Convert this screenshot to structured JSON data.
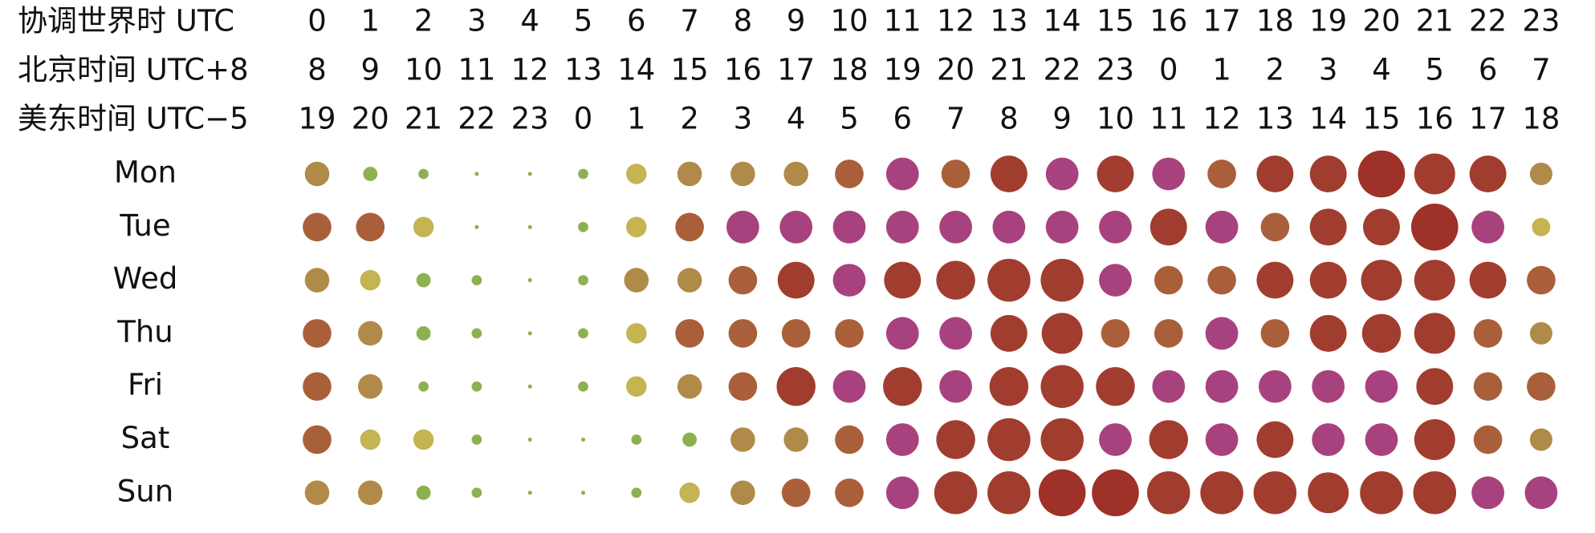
{
  "chart_data": {
    "type": "punchcard",
    "time_rows": [
      {
        "label": "协调世界时 UTC",
        "hours": [
          0,
          1,
          2,
          3,
          4,
          5,
          6,
          7,
          8,
          9,
          10,
          11,
          12,
          13,
          14,
          15,
          16,
          17,
          18,
          19,
          20,
          21,
          22,
          23
        ]
      },
      {
        "label": "北京时间 UTC+8",
        "hours": [
          8,
          9,
          10,
          11,
          12,
          13,
          14,
          15,
          16,
          17,
          18,
          19,
          20,
          21,
          22,
          23,
          0,
          1,
          2,
          3,
          4,
          5,
          6,
          7
        ]
      },
      {
        "label": "美东时间 UTC−5",
        "hours": [
          19,
          20,
          21,
          22,
          23,
          0,
          1,
          2,
          3,
          4,
          5,
          6,
          7,
          8,
          9,
          10,
          11,
          12,
          13,
          14,
          15,
          16,
          17,
          18
        ]
      }
    ],
    "series": [
      {
        "name": "Mon",
        "values": [
          12,
          7,
          5,
          2,
          2,
          5,
          10,
          12,
          12,
          12,
          14,
          16,
          14,
          18,
          16,
          18,
          16,
          14,
          18,
          18,
          23,
          20,
          18,
          11
        ],
        "colors": [
          "#b08a48",
          "#8db150",
          "#8db150",
          "#8db150",
          "#8db150",
          "#8db150",
          "#c4b452",
          "#b08a48",
          "#b08a48",
          "#b08a48",
          "#a9603a",
          "#a8427e",
          "#a9603a",
          "#a13d2e",
          "#a8427e",
          "#a13d2e",
          "#a8427e",
          "#a9603a",
          "#a13d2e",
          "#a13d2e",
          "#9e3128",
          "#a13d2e",
          "#a13d2e",
          "#b08a48"
        ]
      },
      {
        "name": "Tue",
        "values": [
          14,
          14,
          10,
          2,
          2,
          5,
          10,
          14,
          16,
          16,
          16,
          16,
          16,
          16,
          16,
          16,
          18,
          16,
          14,
          18,
          18,
          23,
          16,
          9
        ],
        "colors": [
          "#a9603a",
          "#a9603a",
          "#c4b452",
          "#8db150",
          "#8db150",
          "#8db150",
          "#c4b452",
          "#a9603a",
          "#a8427e",
          "#a8427e",
          "#a8427e",
          "#a8427e",
          "#a8427e",
          "#a8427e",
          "#a8427e",
          "#a8427e",
          "#a13d2e",
          "#a8427e",
          "#a9603a",
          "#a13d2e",
          "#a13d2e",
          "#9e3128",
          "#a8427e",
          "#c4b452"
        ]
      },
      {
        "name": "Wed",
        "values": [
          12,
          10,
          7,
          5,
          2,
          5,
          12,
          12,
          14,
          18,
          16,
          18,
          19,
          21,
          21,
          16,
          14,
          14,
          18,
          18,
          20,
          20,
          18,
          14
        ],
        "colors": [
          "#b08a48",
          "#c4b452",
          "#8db150",
          "#8db150",
          "#8db150",
          "#8db150",
          "#b08a48",
          "#b08a48",
          "#a9603a",
          "#a13d2e",
          "#a8427e",
          "#a13d2e",
          "#a13d2e",
          "#a13d2e",
          "#a13d2e",
          "#a8427e",
          "#a9603a",
          "#a9603a",
          "#a13d2e",
          "#a13d2e",
          "#a13d2e",
          "#a13d2e",
          "#a13d2e",
          "#a9603a"
        ]
      },
      {
        "name": "Thu",
        "values": [
          14,
          12,
          7,
          5,
          2,
          5,
          10,
          14,
          14,
          14,
          14,
          16,
          16,
          18,
          20,
          14,
          14,
          16,
          14,
          18,
          19,
          20,
          14,
          11
        ],
        "colors": [
          "#a9603a",
          "#b08a48",
          "#8db150",
          "#8db150",
          "#8db150",
          "#8db150",
          "#c4b452",
          "#a9603a",
          "#a9603a",
          "#a9603a",
          "#a9603a",
          "#a8427e",
          "#a8427e",
          "#a13d2e",
          "#a13d2e",
          "#a9603a",
          "#a9603a",
          "#a8427e",
          "#a9603a",
          "#a13d2e",
          "#a13d2e",
          "#a13d2e",
          "#a9603a",
          "#b08a48"
        ]
      },
      {
        "name": "Fri",
        "values": [
          14,
          12,
          5,
          5,
          2,
          5,
          10,
          12,
          14,
          19,
          16,
          19,
          16,
          19,
          21,
          19,
          16,
          16,
          16,
          16,
          16,
          18,
          14,
          14
        ],
        "colors": [
          "#a9603a",
          "#b08a48",
          "#8db150",
          "#8db150",
          "#8db150",
          "#8db150",
          "#c4b452",
          "#b08a48",
          "#a9603a",
          "#a13d2e",
          "#a8427e",
          "#a13d2e",
          "#a8427e",
          "#a13d2e",
          "#a13d2e",
          "#a13d2e",
          "#a8427e",
          "#a8427e",
          "#a8427e",
          "#a8427e",
          "#a8427e",
          "#a13d2e",
          "#a9603a",
          "#a9603a"
        ]
      },
      {
        "name": "Sat",
        "values": [
          14,
          10,
          10,
          5,
          2,
          2,
          5,
          7,
          12,
          12,
          14,
          16,
          19,
          21,
          21,
          16,
          19,
          16,
          18,
          16,
          16,
          20,
          14,
          11
        ],
        "colors": [
          "#a9603a",
          "#c4b452",
          "#c4b452",
          "#8db150",
          "#8db150",
          "#8db150",
          "#8db150",
          "#8db150",
          "#b08a48",
          "#b08a48",
          "#a9603a",
          "#a8427e",
          "#a13d2e",
          "#a13d2e",
          "#a13d2e",
          "#a8427e",
          "#a13d2e",
          "#a8427e",
          "#a13d2e",
          "#a8427e",
          "#a8427e",
          "#a13d2e",
          "#a9603a",
          "#b08a48"
        ]
      },
      {
        "name": "Sun",
        "values": [
          12,
          12,
          7,
          5,
          2,
          2,
          5,
          10,
          12,
          14,
          14,
          16,
          21,
          21,
          23,
          23,
          21,
          21,
          21,
          20,
          21,
          21,
          16,
          16
        ],
        "colors": [
          "#b08a48",
          "#b08a48",
          "#8db150",
          "#8db150",
          "#8db150",
          "#8db150",
          "#8db150",
          "#c4b452",
          "#b08a48",
          "#a9603a",
          "#a9603a",
          "#a8427e",
          "#a13d2e",
          "#a13d2e",
          "#9e3128",
          "#9e3128",
          "#a13d2e",
          "#a13d2e",
          "#a13d2e",
          "#a13d2e",
          "#a13d2e",
          "#a13d2e",
          "#a8427e",
          "#a8427e"
        ]
      }
    ]
  }
}
